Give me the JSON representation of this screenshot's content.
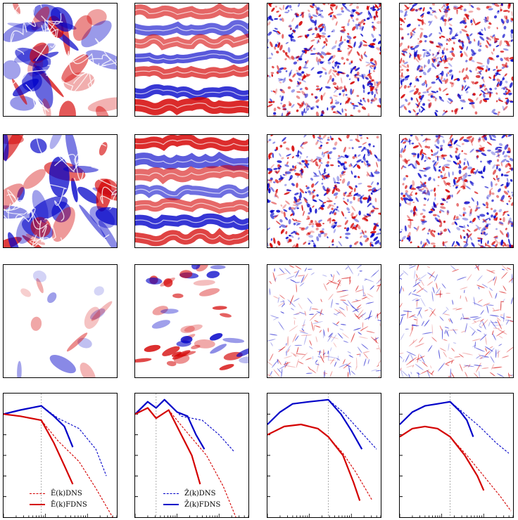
{
  "figure": {
    "rows": [
      {
        "name": "field-row-1",
        "fields": [
          "lo-res-turbulence-vortices",
          "lo-res-jets-zonal",
          "hi-res-turbulence-fine",
          "hi-res-turbulence-fine"
        ]
      },
      {
        "name": "field-row-2",
        "fields": [
          "lo-res-turbulence-vortices-filtered",
          "lo-res-jets-zonal-filtered",
          "hi-res-turbulence-fine-filtered",
          "hi-res-turbulence-fine-filtered"
        ]
      },
      {
        "name": "field-row-3",
        "fields": [
          "lo-res-residual",
          "lo-res-jets-residual",
          "hi-res-residual",
          "hi-res-residual"
        ]
      }
    ],
    "colors": {
      "red": "#d40000",
      "blue": "#0000c8",
      "white": "#ffffff",
      "grid": "#999999"
    }
  },
  "legends": {
    "energy": {
      "dns": "Ê(k)DNS",
      "fdns": "Ē(k)FDNS"
    },
    "enstrophy": {
      "dns": "Ẑ(k)DNS",
      "fdns": "Z̄(k)FDNS"
    }
  },
  "chart_data": [
    {
      "type": "line",
      "title": "",
      "xlabel": "",
      "ylabel": "",
      "scale": "log-log",
      "xlim": [
        0,
        2.7
      ],
      "ylim": [
        0,
        6
      ],
      "cutoff_logk": 0.9,
      "legend": "lower-left",
      "series": [
        {
          "name": "Ê(k)DNS",
          "color": "#0000c8",
          "style": "dashed",
          "logk": [
            0,
            0.4,
            0.9,
            1.3,
            1.8,
            2.2,
            2.45
          ],
          "logy": [
            5.0,
            5.2,
            5.4,
            4.8,
            4.3,
            3.3,
            2.0
          ]
        },
        {
          "name": "Ē(k)FDNS",
          "color": "#0000c8",
          "style": "solid",
          "logk": [
            0,
            0.4,
            0.9,
            1.2,
            1.45,
            1.65
          ],
          "logy": [
            5.0,
            5.2,
            5.4,
            4.9,
            4.4,
            3.4
          ]
        },
        {
          "name": "Ê(k)DNS",
          "color": "#d40000",
          "style": "dashed",
          "logk": [
            0,
            0.4,
            0.9,
            1.3,
            1.8,
            2.2,
            2.6
          ],
          "logy": [
            5.0,
            4.9,
            4.7,
            3.7,
            2.7,
            1.4,
            0.0
          ]
        },
        {
          "name": "Ē(k)FDNS",
          "color": "#d40000",
          "style": "solid",
          "logk": [
            0,
            0.4,
            0.9,
            1.2,
            1.45,
            1.65
          ],
          "logy": [
            5.0,
            4.9,
            4.7,
            3.6,
            2.5,
            1.6
          ]
        }
      ]
    },
    {
      "type": "line",
      "title": "",
      "xlabel": "",
      "ylabel": "",
      "scale": "log-log",
      "xlim": [
        0,
        2.7
      ],
      "ylim": [
        0,
        6
      ],
      "cutoff_logk": 0.5,
      "legend": "lower-left",
      "series": [
        {
          "name": "Ẑ(k)DNS",
          "color": "#0000c8",
          "style": "dashed",
          "logk": [
            0,
            0.3,
            0.5,
            0.7,
            1.1,
            1.6,
            2.0,
            2.35
          ],
          "logy": [
            5.0,
            5.6,
            5.3,
            5.7,
            4.9,
            4.7,
            4.0,
            3.2
          ]
        },
        {
          "name": "Z̄(k)FDNS",
          "color": "#0000c8",
          "style": "solid",
          "logk": [
            0,
            0.3,
            0.5,
            0.7,
            1.0,
            1.25,
            1.45,
            1.65
          ],
          "logy": [
            5.0,
            5.6,
            5.3,
            5.7,
            5.1,
            4.9,
            4.0,
            3.3
          ]
        },
        {
          "name": "Ẑ(k)DNS",
          "color": "#d40000",
          "style": "dashed",
          "logk": [
            0,
            0.3,
            0.5,
            0.8,
            1.2,
            1.7,
            2.1,
            2.4
          ],
          "logy": [
            5.0,
            5.3,
            4.8,
            5.2,
            4.2,
            3.0,
            1.5,
            0.0
          ]
        },
        {
          "name": "Z̄(k)FDNS",
          "color": "#d40000",
          "style": "solid",
          "logk": [
            0,
            0.3,
            0.5,
            0.8,
            1.1,
            1.35,
            1.55
          ],
          "logy": [
            5.0,
            5.3,
            4.8,
            5.2,
            4.0,
            3.0,
            1.6
          ]
        }
      ]
    },
    {
      "type": "line",
      "title": "",
      "xlabel": "",
      "ylabel": "",
      "scale": "log-log",
      "xlim": [
        0,
        2.7
      ],
      "ylim": [
        0,
        6
      ],
      "cutoff_logk": 1.45,
      "series": [
        {
          "name": "Ê(k)DNS",
          "color": "#0000c8",
          "style": "dashed",
          "logk": [
            0,
            0.3,
            0.6,
            1.0,
            1.45,
            1.8,
            2.2,
            2.6
          ],
          "logy": [
            4.5,
            5.1,
            5.5,
            5.6,
            5.7,
            5.1,
            4.2,
            3.3
          ]
        },
        {
          "name": "Ē(k)FDNS",
          "color": "#0000c8",
          "style": "solid",
          "logk": [
            0,
            0.3,
            0.6,
            1.0,
            1.45,
            1.75,
            2.0,
            2.25
          ],
          "logy": [
            4.5,
            5.1,
            5.5,
            5.6,
            5.7,
            5.0,
            4.2,
            3.3
          ]
        },
        {
          "name": "Ê(k)DNS",
          "color": "#d40000",
          "style": "dashed",
          "logk": [
            0,
            0.4,
            0.8,
            1.2,
            1.45,
            1.8,
            2.1,
            2.5
          ],
          "logy": [
            4.0,
            4.4,
            4.5,
            4.3,
            3.9,
            3.1,
            2.2,
            0.8
          ]
        },
        {
          "name": "Ē(k)FDNS",
          "color": "#d40000",
          "style": "solid",
          "logk": [
            0,
            0.4,
            0.8,
            1.2,
            1.45,
            1.8,
            2.05,
            2.2
          ],
          "logy": [
            4.0,
            4.4,
            4.5,
            4.3,
            3.9,
            3.0,
            1.7,
            0.8
          ]
        }
      ]
    },
    {
      "type": "line",
      "title": "",
      "xlabel": "",
      "ylabel": "",
      "scale": "log-log",
      "xlim": [
        0,
        2.7
      ],
      "ylim": [
        0,
        6
      ],
      "cutoff_logk": 1.2,
      "series": [
        {
          "name": "Ẑ(k)DNS",
          "color": "#0000c8",
          "style": "dashed",
          "logk": [
            0,
            0.3,
            0.6,
            0.9,
            1.2,
            1.5,
            1.9,
            2.3,
            2.6
          ],
          "logy": [
            4.5,
            5.1,
            5.4,
            5.5,
            5.6,
            5.1,
            4.4,
            3.6,
            3.1
          ]
        },
        {
          "name": "Z̄(k)FDNS",
          "color": "#0000c8",
          "style": "solid",
          "logk": [
            0,
            0.3,
            0.6,
            0.9,
            1.2,
            1.45,
            1.6,
            1.75
          ],
          "logy": [
            4.5,
            5.1,
            5.4,
            5.5,
            5.6,
            5.1,
            4.7,
            3.9
          ]
        },
        {
          "name": "Ẑ(k)DNS",
          "color": "#d40000",
          "style": "dashed",
          "logk": [
            0,
            0.3,
            0.6,
            0.9,
            1.2,
            1.6,
            2.0,
            2.4,
            2.65
          ],
          "logy": [
            3.9,
            4.3,
            4.4,
            4.3,
            3.9,
            3.0,
            2.0,
            1.0,
            0.3
          ]
        },
        {
          "name": "Z̄(k)FDNS",
          "color": "#d40000",
          "style": "solid",
          "logk": [
            0,
            0.3,
            0.6,
            0.9,
            1.2,
            1.55,
            1.85,
            2.0
          ],
          "logy": [
            3.9,
            4.3,
            4.4,
            4.3,
            3.9,
            3.0,
            2.0,
            1.3
          ]
        }
      ]
    }
  ]
}
